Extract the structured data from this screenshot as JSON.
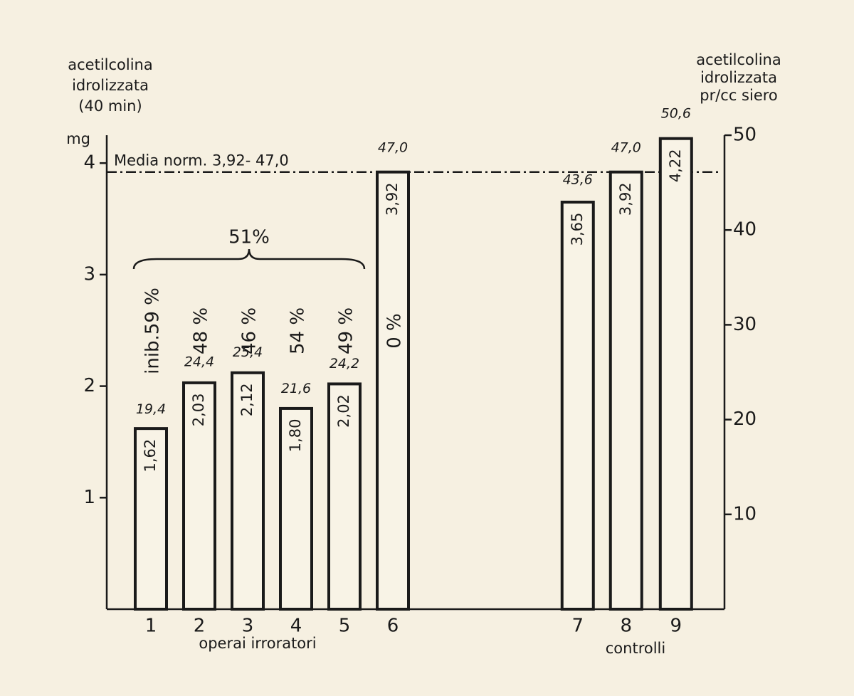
{
  "chart_data": {
    "type": "bar",
    "y_title": [
      "acetilcolina",
      "idrolizzata",
      "(40 min)"
    ],
    "y_unit": "mg",
    "y2_title": [
      "acetilcolina",
      "idrolizzata",
      "pr/cc siero"
    ],
    "categories": [
      "1",
      "2",
      "3",
      "4",
      "5",
      "6",
      "7",
      "8",
      "9"
    ],
    "values": [
      1.62,
      2.03,
      2.12,
      1.8,
      2.02,
      3.92,
      3.65,
      3.92,
      4.22
    ],
    "value_labels": [
      "1,62",
      "2,03",
      "2,12",
      "1,80",
      "2,02",
      "3,92",
      "3,65",
      "3,92",
      "4,22"
    ],
    "values_y2": [
      19.4,
      24.4,
      25.4,
      21.6,
      24.2,
      47.0,
      43.6,
      47.0,
      50.6
    ],
    "value_labels_y2": [
      "19,4",
      "24,4",
      "25,4",
      "21,6",
      "24,2",
      "47,0",
      "43,6",
      "47,0",
      "50,6"
    ],
    "inhibition_labels": [
      "inib.59 %",
      "48 %",
      "46 %",
      "54 %",
      "49 %",
      "0 %"
    ],
    "group_brace_label": "51%",
    "groups": [
      "operai irroratori",
      "controlli"
    ],
    "reference_line": {
      "value": 3.92,
      "label": "Media norm. 3,92- 47,0"
    },
    "ylim": [
      0,
      4.25
    ],
    "yticks": [
      1,
      2,
      3,
      4
    ],
    "y2lim": [
      0,
      50
    ],
    "y2ticks": [
      10,
      20,
      30,
      40,
      50
    ],
    "color": "#1a1a1a",
    "fill": "#f8f3e6",
    "grid": false
  }
}
